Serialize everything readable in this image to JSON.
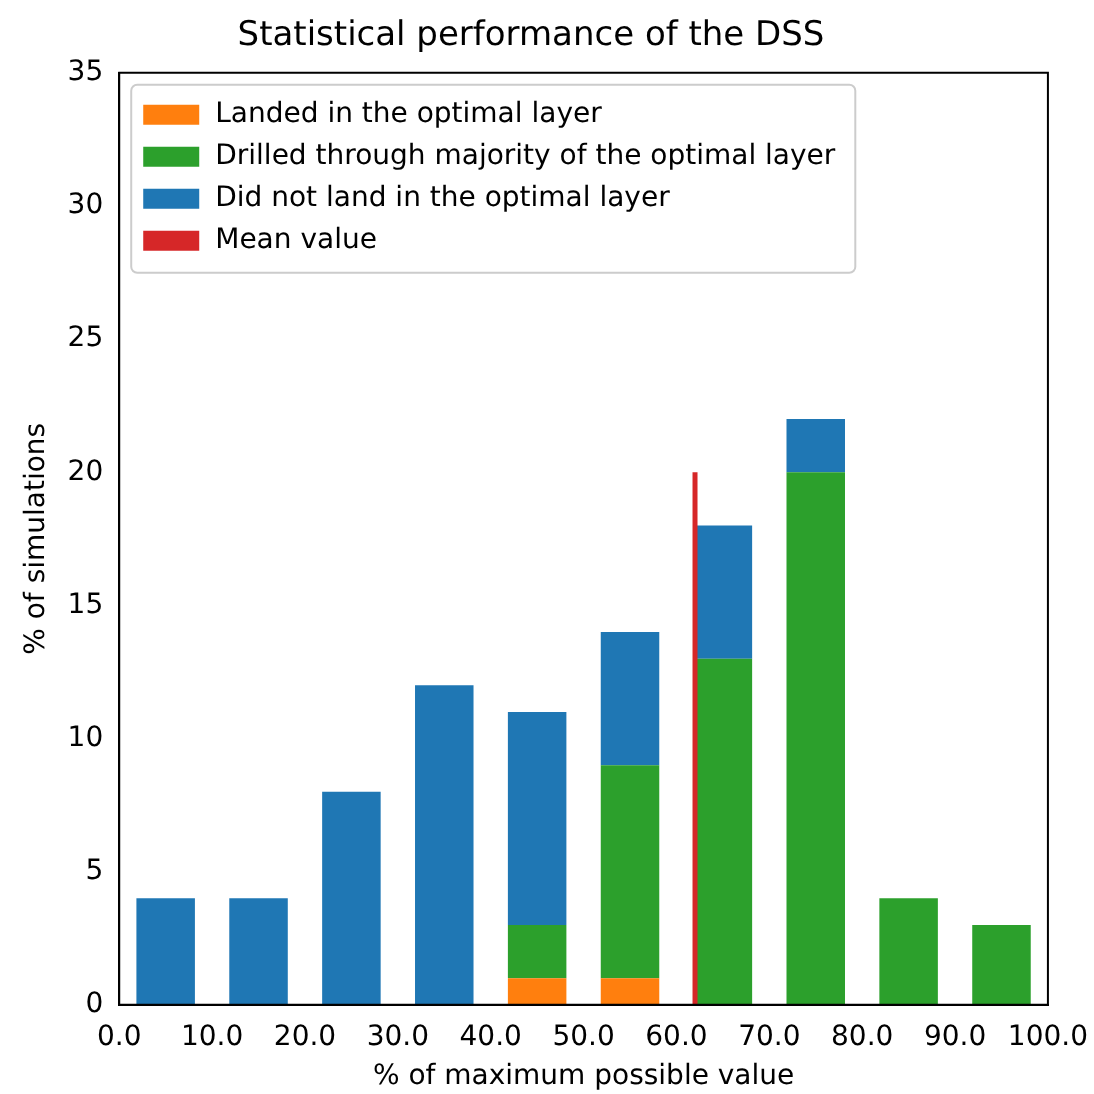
{
  "chart_data": {
    "type": "bar",
    "title": "Statistical performance of the DSS",
    "xlabel": "% of maximum possible value",
    "ylabel": "% of simulations",
    "stacked": true,
    "x": [
      5,
      15,
      25,
      35,
      45,
      55,
      65,
      75,
      85,
      95
    ],
    "series": [
      {
        "name": "Landed in the optimal layer",
        "color": "#ff7f0e",
        "values": [
          null,
          null,
          null,
          null,
          1,
          1,
          null,
          null,
          null,
          null
        ]
      },
      {
        "name": "Drilled through majority of the optimal layer",
        "color": "#2ca02c",
        "values": [
          null,
          null,
          null,
          null,
          2,
          8,
          13,
          20,
          4,
          3
        ]
      },
      {
        "name": "Did not land in the optimal layer",
        "color": "#1f77b4",
        "values": [
          4,
          4,
          8,
          12,
          8,
          5,
          5,
          2,
          null,
          null
        ]
      },
      {
        "name": "Mean value",
        "type": "line",
        "color": "#d62728",
        "x": [
          62,
          62
        ],
        "values": [
          0,
          20
        ]
      }
    ],
    "xlim": [
      0,
      100
    ],
    "xticks": [
      {
        "value": 0,
        "label": "0.0"
      },
      {
        "value": 10,
        "label": "10.0"
      },
      {
        "value": 20,
        "label": "20.0"
      },
      {
        "value": 30,
        "label": "30.0"
      },
      {
        "value": 40,
        "label": "40.0"
      },
      {
        "value": 50,
        "label": "50.0"
      },
      {
        "value": 60,
        "label": "60.0"
      },
      {
        "value": 70,
        "label": "70.0"
      },
      {
        "value": 80,
        "label": "80.0"
      },
      {
        "value": 90,
        "label": "90.0"
      },
      {
        "value": 100,
        "label": "100.0"
      }
    ],
    "ylim": [
      0,
      35
    ],
    "yticks": [
      0,
      5,
      10,
      15,
      20,
      25,
      30,
      35
    ],
    "grid": false,
    "legend": "top left"
  }
}
